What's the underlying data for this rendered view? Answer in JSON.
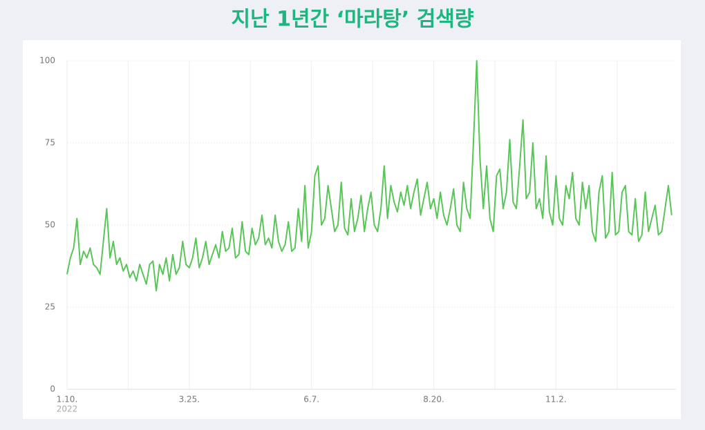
{
  "chart_data": {
    "type": "line",
    "title": "지난 1년간 ‘마라탕’ 검색량",
    "x_sublabel": "2022",
    "categories": [
      "1.10.",
      null,
      null,
      null,
      null,
      null,
      null,
      null,
      null,
      null,
      null,
      null,
      null,
      null,
      null,
      null,
      null,
      null,
      null,
      null,
      null,
      null,
      null,
      null,
      null,
      null,
      null,
      null,
      null,
      null,
      null,
      null,
      null,
      null,
      null,
      null,
      null,
      "3.25.",
      null,
      null,
      null,
      null,
      null,
      null,
      null,
      null,
      null,
      null,
      null,
      null,
      null,
      null,
      null,
      null,
      null,
      null,
      null,
      null,
      null,
      null,
      null,
      null,
      null,
      null,
      null,
      null,
      null,
      null,
      null,
      null,
      null,
      null,
      null,
      null,
      "6.7.",
      null,
      null,
      null,
      null,
      null,
      null,
      null,
      null,
      null,
      null,
      null,
      null,
      null,
      null,
      null,
      null,
      null,
      null,
      null,
      null,
      null,
      null,
      null,
      null,
      null,
      null,
      null,
      null,
      null,
      null,
      null,
      null,
      null,
      null,
      null,
      null,
      "8.20.",
      null,
      null,
      null,
      null,
      null,
      null,
      null,
      null,
      null,
      null,
      null,
      null,
      null,
      null,
      null,
      null,
      null,
      null,
      null,
      null,
      null,
      null,
      null,
      null,
      null,
      null,
      null,
      null,
      null,
      null,
      null,
      null,
      null,
      null,
      null,
      null,
      "11.2.",
      null,
      null,
      null,
      null,
      null,
      null,
      null,
      null,
      null,
      null,
      null,
      null,
      null,
      null,
      null,
      null,
      null,
      null,
      null,
      null,
      null,
      null,
      null,
      null,
      null,
      null,
      null,
      null,
      null,
      null,
      null,
      null,
      null,
      null,
      null
    ],
    "series": [
      {
        "color": "#57c657",
        "values": [
          35,
          40,
          43,
          52,
          38,
          42,
          40,
          43,
          38,
          37,
          35,
          45,
          55,
          40,
          45,
          38,
          40,
          36,
          38,
          34,
          36,
          33,
          38,
          35,
          32,
          38,
          39,
          30,
          38,
          35,
          40,
          33,
          41,
          35,
          37,
          45,
          38,
          37,
          40,
          46,
          37,
          40,
          45,
          38,
          41,
          44,
          40,
          48,
          42,
          43,
          49,
          40,
          41,
          51,
          42,
          41,
          49,
          44,
          46,
          53,
          44,
          46,
          43,
          53,
          45,
          42,
          44,
          51,
          42,
          43,
          55,
          45,
          62,
          43,
          48,
          65,
          68,
          50,
          52,
          62,
          55,
          48,
          50,
          63,
          49,
          47,
          58,
          48,
          52,
          59,
          48,
          55,
          60,
          50,
          48,
          55,
          68,
          52,
          62,
          57,
          54,
          60,
          56,
          62,
          55,
          60,
          64,
          53,
          58,
          63,
          55,
          58,
          52,
          60,
          53,
          50,
          55,
          61,
          50,
          48,
          63,
          55,
          52,
          75,
          100,
          70,
          55,
          68,
          52,
          48,
          65,
          67,
          55,
          60,
          76,
          57,
          55,
          68,
          82,
          58,
          60,
          75,
          55,
          58,
          52,
          71,
          54,
          50,
          65,
          52,
          50,
          62,
          58,
          66,
          52,
          50,
          63,
          55,
          62,
          48,
          45,
          60,
          65,
          46,
          48,
          66,
          47,
          48,
          60,
          62,
          48,
          47,
          58,
          45,
          47,
          60,
          48,
          52,
          56,
          47,
          48,
          55,
          62,
          53
        ]
      }
    ],
    "ylim": [
      0,
      100
    ],
    "yticks": [
      0,
      25,
      50,
      75,
      100
    ],
    "grid": true
  }
}
